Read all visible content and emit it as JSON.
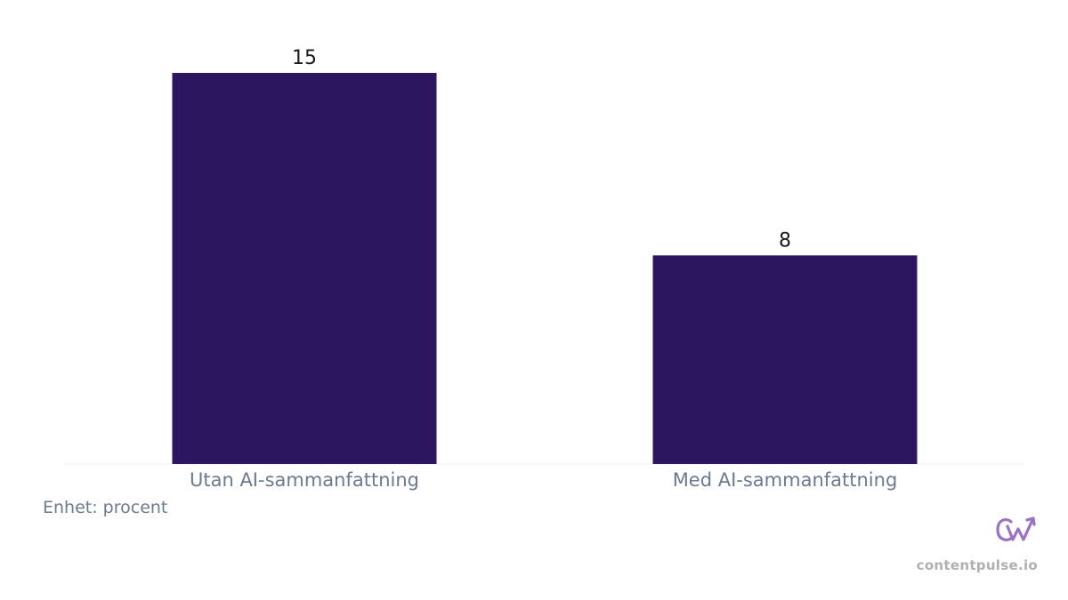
{
  "chart_data": {
    "type": "bar",
    "categories": [
      "Utan AI-sammanfattning",
      "Med AI-sammanfattning"
    ],
    "values": [
      15,
      8
    ],
    "ylim": [
      0,
      15
    ],
    "grid": false,
    "legend": "none",
    "bar_color": "#2d1660",
    "unit_note": "Enhet: procent"
  },
  "branding": {
    "site": "contentpulse.io",
    "logo_icon": "contentpulse-logo-icon",
    "logo_color": "#9b72c8"
  }
}
